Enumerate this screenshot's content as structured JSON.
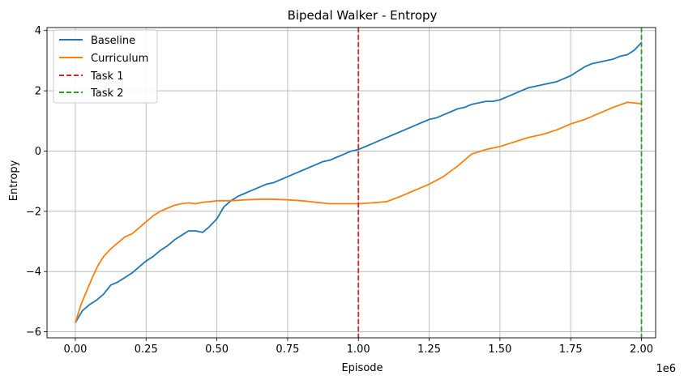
{
  "chart_data": {
    "type": "line",
    "title": "Bipedal Walker - Entropy",
    "xlabel": "Episode",
    "ylabel": "Entropy",
    "x_offset_text": "1e6",
    "xlim": [
      -0.1,
      2.05
    ],
    "ylim": [
      -6.2,
      4.1
    ],
    "x_ticks": [
      0.0,
      0.25,
      0.5,
      0.75,
      1.0,
      1.25,
      1.5,
      1.75,
      2.0
    ],
    "x_tick_labels": [
      "0.00",
      "0.25",
      "0.50",
      "0.75",
      "1.00",
      "1.25",
      "1.50",
      "1.75",
      "2.00"
    ],
    "y_ticks": [
      -6,
      -4,
      -2,
      0,
      2,
      4
    ],
    "y_tick_labels": [
      "−6",
      "−4",
      "−2",
      "0",
      "2",
      "4"
    ],
    "grid": true,
    "legend_position": "top-left",
    "series": [
      {
        "name": "Baseline",
        "color": "#1f77b4",
        "style": "solid",
        "x": [
          0.0,
          0.025,
          0.05,
          0.075,
          0.1,
          0.125,
          0.15,
          0.175,
          0.2,
          0.225,
          0.25,
          0.275,
          0.3,
          0.325,
          0.35,
          0.375,
          0.4,
          0.425,
          0.45,
          0.475,
          0.5,
          0.525,
          0.55,
          0.575,
          0.6,
          0.625,
          0.65,
          0.675,
          0.7,
          0.725,
          0.75,
          0.775,
          0.8,
          0.825,
          0.85,
          0.875,
          0.9,
          0.925,
          0.95,
          0.975,
          1.0,
          1.025,
          1.05,
          1.075,
          1.1,
          1.125,
          1.15,
          1.175,
          1.2,
          1.225,
          1.25,
          1.275,
          1.3,
          1.325,
          1.35,
          1.375,
          1.4,
          1.425,
          1.45,
          1.475,
          1.5,
          1.525,
          1.55,
          1.575,
          1.6,
          1.625,
          1.65,
          1.675,
          1.7,
          1.725,
          1.75,
          1.775,
          1.8,
          1.825,
          1.85,
          1.875,
          1.9,
          1.925,
          1.95,
          1.975,
          2.0
        ],
        "y": [
          -5.7,
          -5.3,
          -5.1,
          -4.95,
          -4.75,
          -4.45,
          -4.35,
          -4.2,
          -4.05,
          -3.85,
          -3.65,
          -3.5,
          -3.3,
          -3.15,
          -2.95,
          -2.8,
          -2.65,
          -2.65,
          -2.7,
          -2.5,
          -2.25,
          -1.85,
          -1.65,
          -1.5,
          -1.4,
          -1.3,
          -1.2,
          -1.1,
          -1.05,
          -0.95,
          -0.85,
          -0.75,
          -0.65,
          -0.55,
          -0.45,
          -0.35,
          -0.3,
          -0.2,
          -0.1,
          0.0,
          0.05,
          0.15,
          0.25,
          0.35,
          0.45,
          0.55,
          0.65,
          0.75,
          0.85,
          0.95,
          1.05,
          1.1,
          1.2,
          1.3,
          1.4,
          1.45,
          1.55,
          1.6,
          1.65,
          1.65,
          1.7,
          1.8,
          1.9,
          2.0,
          2.1,
          2.15,
          2.2,
          2.25,
          2.3,
          2.4,
          2.5,
          2.65,
          2.8,
          2.9,
          2.95,
          3.0,
          3.05,
          3.15,
          3.2,
          3.35,
          3.6
        ]
      },
      {
        "name": "Curriculum",
        "color": "#ff7f0e",
        "style": "solid",
        "x": [
          0.0,
          0.02,
          0.04,
          0.06,
          0.08,
          0.1,
          0.125,
          0.15,
          0.175,
          0.2,
          0.225,
          0.25,
          0.275,
          0.3,
          0.325,
          0.35,
          0.375,
          0.4,
          0.425,
          0.45,
          0.475,
          0.5,
          0.55,
          0.6,
          0.65,
          0.7,
          0.75,
          0.8,
          0.85,
          0.9,
          0.95,
          1.0,
          1.05,
          1.1,
          1.15,
          1.2,
          1.25,
          1.3,
          1.35,
          1.4,
          1.45,
          1.5,
          1.55,
          1.6,
          1.65,
          1.7,
          1.75,
          1.8,
          1.85,
          1.9,
          1.95,
          2.0
        ],
        "y": [
          -5.7,
          -5.1,
          -4.65,
          -4.2,
          -3.8,
          -3.5,
          -3.25,
          -3.05,
          -2.85,
          -2.75,
          -2.55,
          -2.35,
          -2.15,
          -2.0,
          -1.9,
          -1.8,
          -1.75,
          -1.72,
          -1.75,
          -1.7,
          -1.68,
          -1.65,
          -1.65,
          -1.62,
          -1.6,
          -1.6,
          -1.62,
          -1.65,
          -1.7,
          -1.75,
          -1.75,
          -1.75,
          -1.72,
          -1.68,
          -1.5,
          -1.3,
          -1.1,
          -0.85,
          -0.5,
          -0.1,
          0.05,
          0.15,
          0.3,
          0.45,
          0.55,
          0.7,
          0.9,
          1.05,
          1.25,
          1.45,
          1.62,
          1.57
        ]
      },
      {
        "name": "Task 1",
        "color": "#d62728",
        "style": "dashed",
        "vline_x": 1.0
      },
      {
        "name": "Task 2",
        "color": "#2ca02c",
        "style": "dashed",
        "vline_x": 2.0
      }
    ]
  }
}
